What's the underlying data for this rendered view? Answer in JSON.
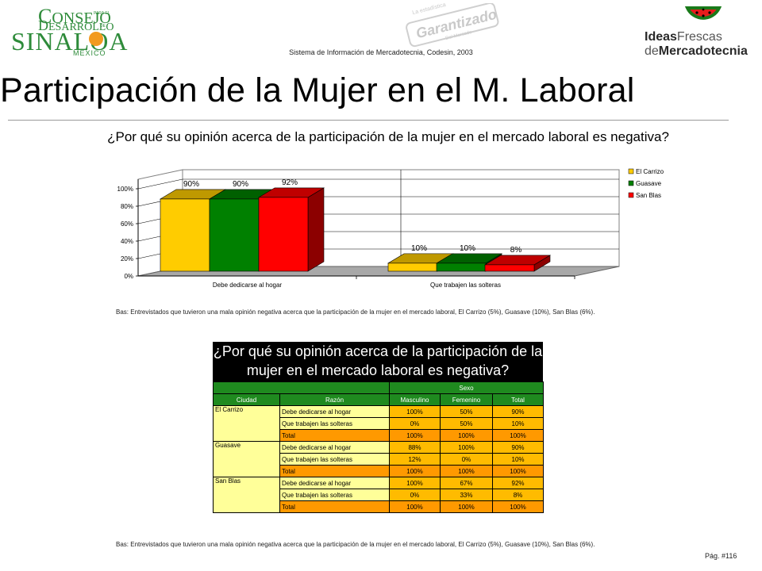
{
  "header": {
    "logo_left": {
      "line1": "ONSEJO",
      "line1_cap": "C",
      "line1_small": "PARA EL",
      "line2": "ESARROLLO",
      "line2_cap": "D",
      "line2_small": "DE",
      "line3": "SINALOA",
      "line4": "MEXICO"
    },
    "stamp_text": "Garantizado",
    "stamp_small_top": "La estadística",
    "stamp_small_bottom": "Del Mercado",
    "logo_right": {
      "line1a": "Ideas",
      "line1b": "Frescas",
      "line2a": "de",
      "line2b": "Mercadotecnia"
    },
    "subtitle": "Sistema de Información de Mercadotecnia, Codesin, 2003",
    "title": "Participación de la Mujer en el M. Laboral"
  },
  "chart_data": {
    "type": "bar",
    "title": "¿Por qué su opinión acerca de la participación de la mujer en el mercado laboral es negativa?",
    "categories": [
      "Debe dedicarse al hogar",
      "Que trabajen las solteras"
    ],
    "series": [
      {
        "name": "El Carrizo",
        "values": [
          90,
          10
        ],
        "labels": [
          "90%",
          "10%"
        ],
        "color": "#ffcc00"
      },
      {
        "name": "Guasave",
        "values": [
          90,
          10
        ],
        "labels": [
          "90%",
          "10%"
        ],
        "color": "#008000"
      },
      {
        "name": "San Blas",
        "values": [
          92,
          8
        ],
        "labels": [
          "92%",
          "8%"
        ],
        "color": "#ff0000"
      }
    ],
    "yticks": [
      "0%",
      "20%",
      "40%",
      "60%",
      "80%",
      "100%"
    ],
    "ylim": [
      0,
      100
    ],
    "legend": "right",
    "three_d": true
  },
  "base_note": "Bas: Entrevistados que tuvieron una mala opinión negativa acerca que la participación de la mujer en el mercado laboral, El Carrizo (5%), Guasave (10%), San Blas (6%).",
  "table": {
    "title_line1": "¿Por qué su opinión acerca de la participación de la",
    "title_line2": "mujer en el mercado laboral es negativa?",
    "group_header": "Sexo",
    "headers": [
      "Ciudad",
      "Razón",
      "Masculino",
      "Femenino",
      "Total"
    ],
    "rows": [
      {
        "city": "El Carrizo",
        "items": [
          {
            "reason": "Debe dedicarse al hogar",
            "m": "100%",
            "f": "50%",
            "t": "90%"
          },
          {
            "reason": "Que trabajen las solteras",
            "m": "0%",
            "f": "50%",
            "t": "10%"
          },
          {
            "reason": "Total",
            "m": "100%",
            "f": "100%",
            "t": "100%"
          }
        ]
      },
      {
        "city": "Guasave",
        "items": [
          {
            "reason": "Debe dedicarse al hogar",
            "m": "88%",
            "f": "100%",
            "t": "90%"
          },
          {
            "reason": "Que trabajen las solteras",
            "m": "12%",
            "f": "0%",
            "t": "10%"
          },
          {
            "reason": "Total",
            "m": "100%",
            "f": "100%",
            "t": "100%"
          }
        ]
      },
      {
        "city": "San Blas",
        "items": [
          {
            "reason": "Debe dedicarse al hogar",
            "m": "100%",
            "f": "67%",
            "t": "92%"
          },
          {
            "reason": "Que trabajen las solteras",
            "m": "0%",
            "f": "33%",
            "t": "8%"
          },
          {
            "reason": "Total",
            "m": "100%",
            "f": "100%",
            "t": "100%"
          }
        ]
      }
    ]
  },
  "base_note_2": "Bas: Entrevistados que tuvieron una mala opinión negativa acerca que la participación de la mujer en el mercado laboral, El Carrizo (5%), Guasave (10%), San Blas (6%).",
  "page_number": "Pág. #116"
}
